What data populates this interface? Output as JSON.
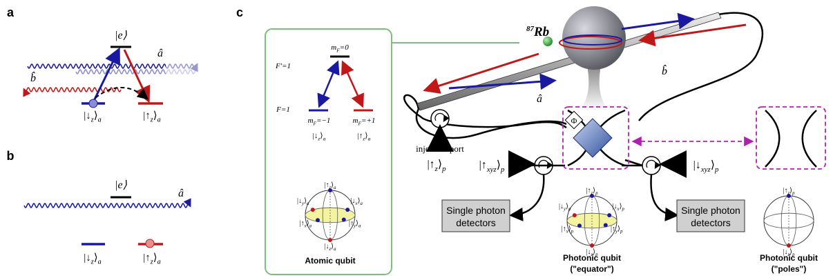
{
  "panels": {
    "a": {
      "label": "a",
      "excited": "|e⟩",
      "a_hat": "â",
      "b_hat": "b̂",
      "down": [
        "|↓",
        "z",
        "⟩",
        "a"
      ],
      "up": [
        "|↑",
        "z",
        "⟩",
        "a"
      ]
    },
    "b": {
      "label": "b",
      "excited": "|e⟩",
      "a_hat": "â",
      "down": [
        "|↓",
        "z",
        "⟩",
        "a"
      ],
      "up": [
        "|↑",
        "z",
        "⟩",
        "a"
      ]
    },
    "c": {
      "label": "c",
      "rb": {
        "sup": "87",
        "text": "Rb"
      },
      "a_hat": "â",
      "b_hat": "b̂",
      "phi": "Φ",
      "injection": "injection port",
      "inject_state": [
        "|↑",
        "z",
        "⟩",
        "p"
      ],
      "left_in": [
        "|↑",
        "xyz",
        "⟩",
        "p"
      ],
      "right_in": [
        "|↓",
        "xyz",
        "⟩",
        "p"
      ],
      "detectors": [
        [
          "Single photon",
          "detectors"
        ],
        [
          "Single photon",
          "detectors"
        ]
      ],
      "inset": {
        "upper_level": "F′=1",
        "lower_level": "F=1",
        "m0": [
          "m",
          "F",
          "=0"
        ],
        "m_minus": [
          "m",
          "F",
          "=−1"
        ],
        "m_plus": [
          "m",
          "F",
          "=+1"
        ],
        "down": [
          "|↓",
          "z",
          "⟩",
          "a"
        ],
        "up": [
          "|↑",
          "z",
          "⟩",
          "a"
        ],
        "bloch": [
          [
            "|↑",
            "z",
            "⟩",
            "a"
          ],
          [
            "|↓",
            "z",
            "⟩",
            "a"
          ],
          [
            "|↓",
            "y",
            "⟩",
            "a"
          ],
          [
            "|↓",
            "x",
            "⟩",
            "a"
          ],
          [
            "|↑",
            "x",
            "⟩",
            "a"
          ],
          [
            "|↑",
            "y",
            "⟩",
            "a"
          ]
        ],
        "title": "Atomic qubit"
      },
      "equator": {
        "bloch": [
          [
            "|↑",
            "z",
            "⟩",
            "p"
          ],
          [
            "|↓",
            "z",
            "⟩",
            "p"
          ],
          [
            "|↓",
            "y",
            "⟩",
            "p"
          ],
          [
            "|↓",
            "x",
            "⟩",
            "p"
          ],
          [
            "|↑",
            "x",
            "⟩",
            "p"
          ],
          [
            "|↑",
            "y",
            "⟩",
            "p"
          ]
        ],
        "title": [
          "Photonic qubit",
          "(\"equator\")"
        ]
      },
      "poles": {
        "bloch": [
          [
            "|↑",
            "z",
            "⟩",
            "p"
          ],
          [
            "|↓",
            "z",
            "⟩",
            "p"
          ]
        ],
        "title": [
          "Photonic qubit",
          "(\"poles\")"
        ]
      }
    }
  }
}
